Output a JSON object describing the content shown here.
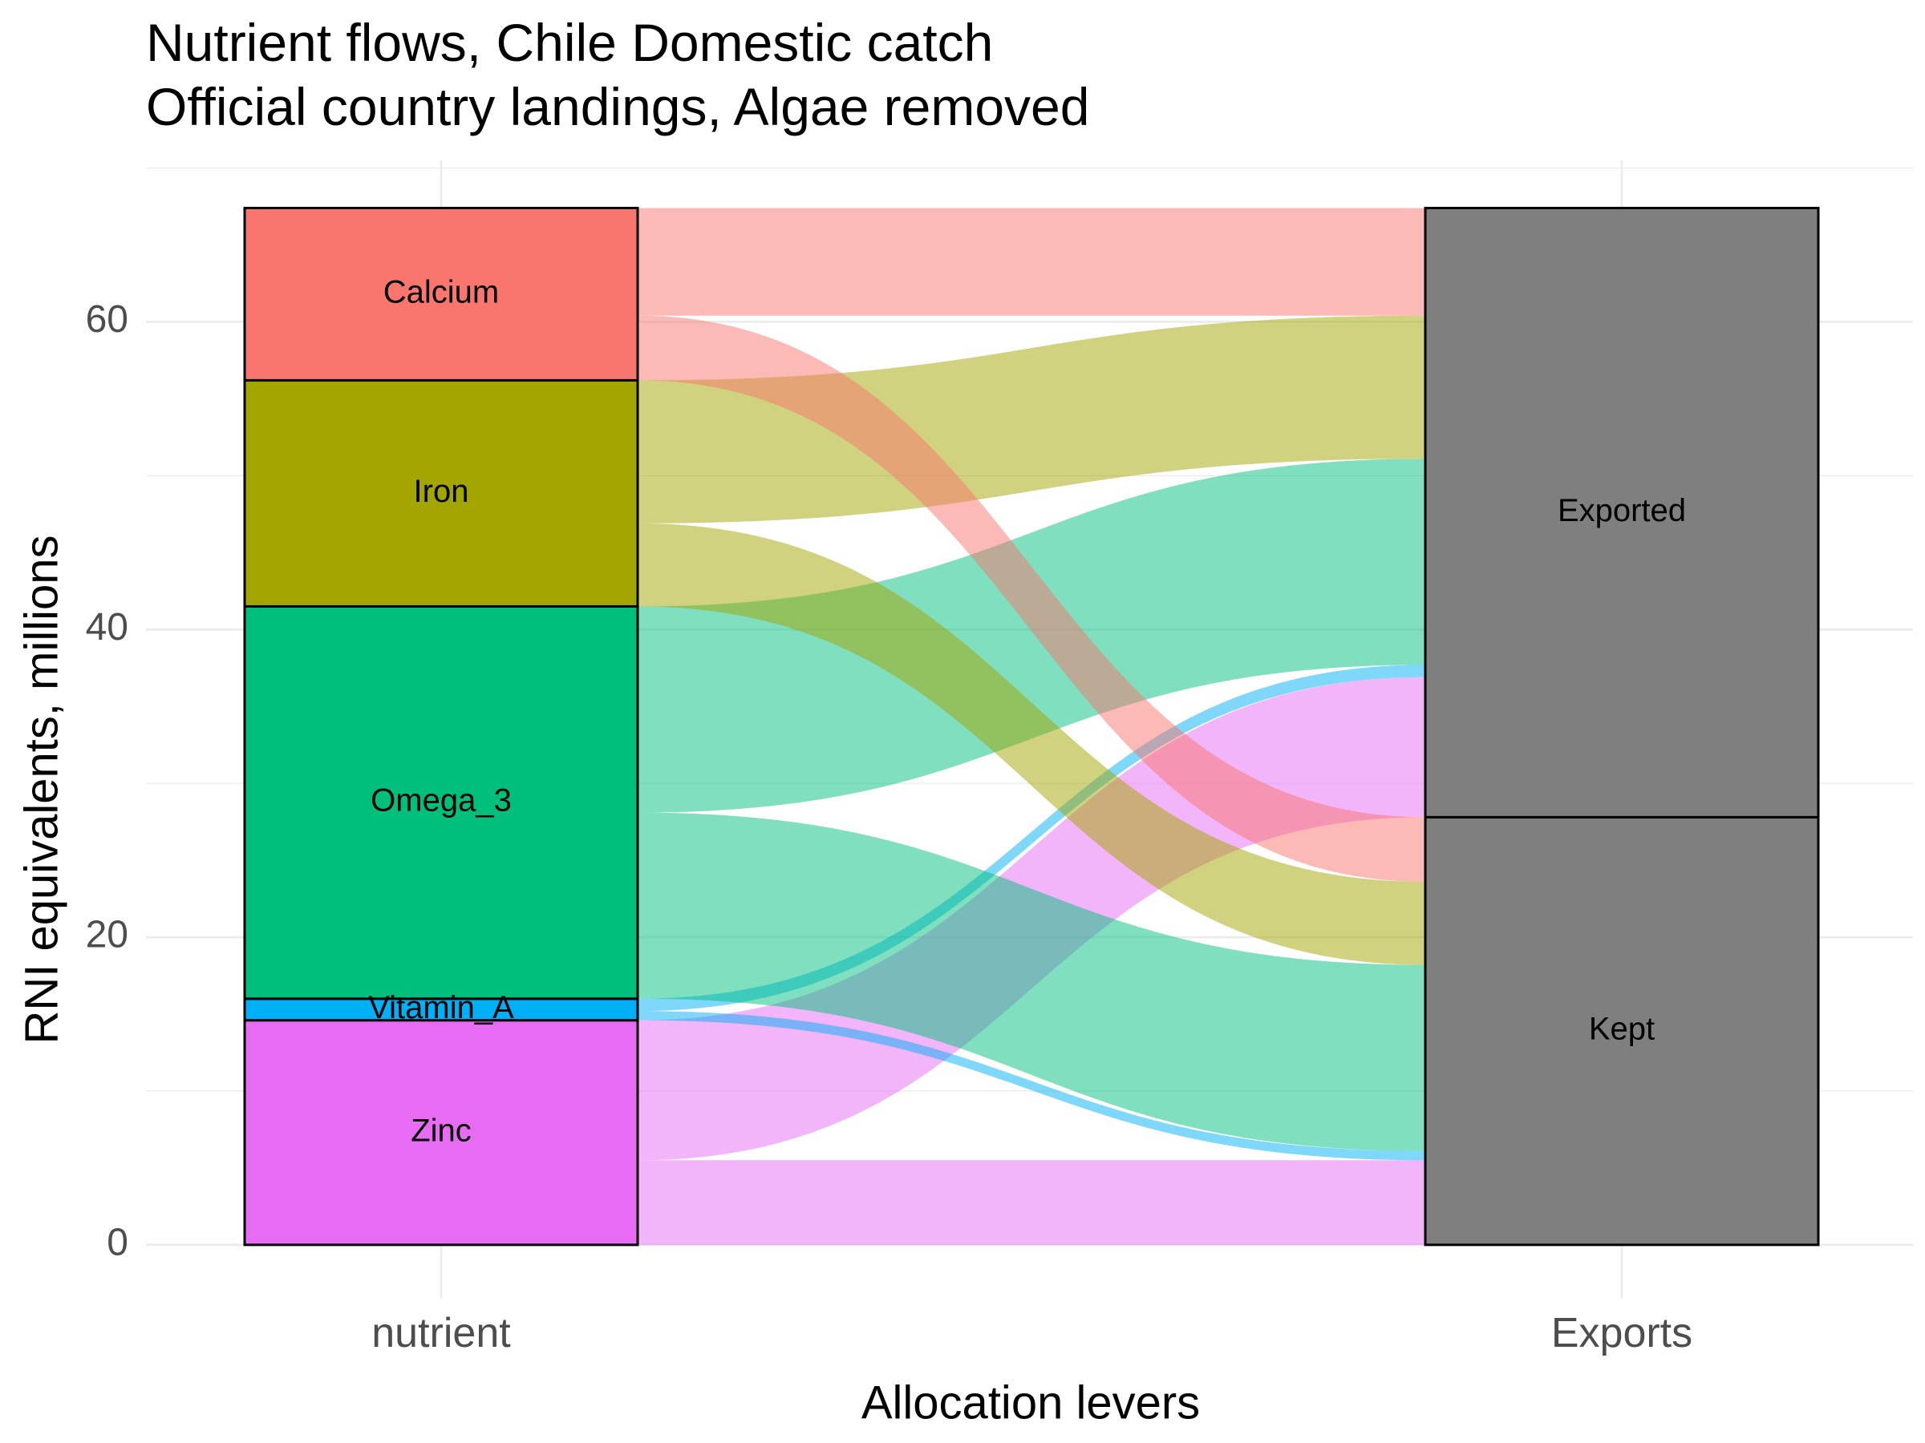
{
  "chart_data": {
    "type": "alluvial",
    "title": "Nutrient flows, Chile Domestic catch",
    "subtitle": "Official country landings, Algae removed",
    "xlabel": "Allocation levers",
    "ylabel": "RNI equivalents, millions",
    "axes": [
      "nutrient",
      "Exports"
    ],
    "y_ticks": [
      0,
      20,
      40,
      60
    ],
    "ylim": [
      -3.5,
      70.5
    ],
    "grid": true,
    "legend": "none",
    "nutrient_strata": [
      {
        "name": "Zinc",
        "value": 14.6,
        "color": "#E76BF3"
      },
      {
        "name": "Vitamin_A",
        "value": 1.4,
        "color": "#00B0F6"
      },
      {
        "name": "Omega_3",
        "value": 25.5,
        "color": "#00BF7D"
      },
      {
        "name": "Iron",
        "value": 14.7,
        "color": "#A3A500"
      },
      {
        "name": "Calcium",
        "value": 11.2,
        "color": "#F8766D"
      }
    ],
    "exports_strata": [
      {
        "name": "Kept",
        "value": 27.8,
        "color": "#7F7F7F"
      },
      {
        "name": "Exported",
        "value": 39.6,
        "color": "#7F7F7F"
      }
    ],
    "flows": [
      {
        "nutrient": "Zinc",
        "exports": "Kept",
        "value": 5.5
      },
      {
        "nutrient": "Zinc",
        "exports": "Exported",
        "value": 9.1
      },
      {
        "nutrient": "Vitamin_A",
        "exports": "Kept",
        "value": 0.6
      },
      {
        "nutrient": "Vitamin_A",
        "exports": "Exported",
        "value": 0.8
      },
      {
        "nutrient": "Omega_3",
        "exports": "Kept",
        "value": 12.1
      },
      {
        "nutrient": "Omega_3",
        "exports": "Exported",
        "value": 13.4
      },
      {
        "nutrient": "Iron",
        "exports": "Kept",
        "value": 5.4
      },
      {
        "nutrient": "Iron",
        "exports": "Exported",
        "value": 9.3
      },
      {
        "nutrient": "Calcium",
        "exports": "Kept",
        "value": 4.2
      },
      {
        "nutrient": "Calcium",
        "exports": "Exported",
        "value": 7.0
      }
    ]
  }
}
